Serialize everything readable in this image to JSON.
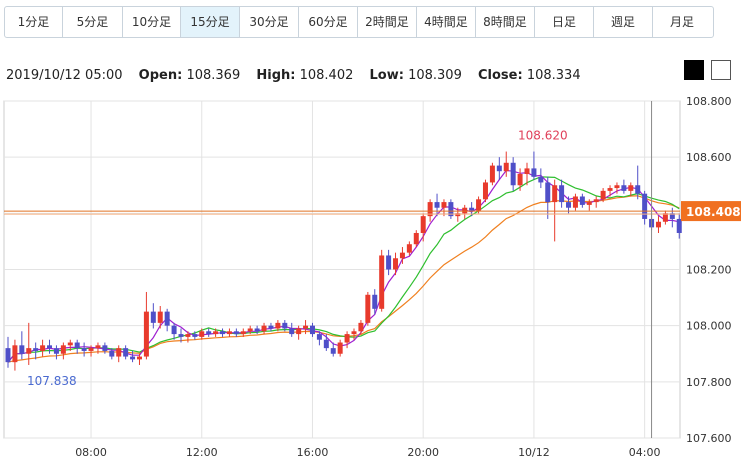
{
  "tabs": [
    {
      "label": "1分足",
      "active": false
    },
    {
      "label": "5分足",
      "active": false
    },
    {
      "label": "10分足",
      "active": false
    },
    {
      "label": "15分足",
      "active": true
    },
    {
      "label": "30分足",
      "active": false
    },
    {
      "label": "60分足",
      "active": false
    },
    {
      "label": "2時間足",
      "active": false
    },
    {
      "label": "4時間足",
      "active": false
    },
    {
      "label": "8時間足",
      "active": false
    },
    {
      "label": "日足",
      "active": false
    },
    {
      "label": "週足",
      "active": false
    },
    {
      "label": "月足",
      "active": false
    }
  ],
  "ohlc": {
    "datetime": "2019/10/12 05:00",
    "open_label": "Open:",
    "open": "108.369",
    "high_label": "High:",
    "high": "108.402",
    "low_label": "Low:",
    "low": "108.309",
    "close_label": "Close:",
    "close": "108.334"
  },
  "theme_buttons": {
    "dark_color": "#000000",
    "light_color": "#ffffff"
  },
  "chart_data": {
    "type": "candlestick",
    "ylim": [
      107.6,
      108.8
    ],
    "yticks": [
      "108.800",
      "108.600",
      "108.400",
      "108.200",
      "108.000",
      "107.800",
      "107.600"
    ],
    "xticks": [
      {
        "label": "08:00",
        "i": 12
      },
      {
        "label": "12:00",
        "i": 28
      },
      {
        "label": "16:00",
        "i": 44
      },
      {
        "label": "20:00",
        "i": 60
      },
      {
        "label": "10/12",
        "i": 76
      },
      {
        "label": "04:00",
        "i": 92
      }
    ],
    "current_price": "108.408",
    "current_price_value": 108.408,
    "high_annotation": {
      "label": "108.620",
      "value": 108.62,
      "i": 77
    },
    "low_annotation": {
      "label": "107.838",
      "value": 107.838,
      "i": 2
    },
    "grid": true,
    "colors": {
      "up": "#e83a2c",
      "down": "#4f4fc8",
      "ma_short": "#a020d0",
      "ma_mid": "#2fbf2f",
      "ma_long": "#f08020",
      "price_line": "#e07020",
      "price_tag_bg": "#f07020",
      "high_label": "#e0405a",
      "low_label": "#4a6ad0"
    },
    "candles": [
      [
        107.92,
        107.96,
        107.85,
        107.87
      ],
      [
        107.87,
        107.95,
        107.84,
        107.93
      ],
      [
        107.93,
        107.98,
        107.88,
        107.9
      ],
      [
        107.9,
        108.01,
        107.86,
        107.92
      ],
      [
        107.92,
        107.94,
        107.88,
        107.91
      ],
      [
        107.91,
        107.95,
        107.89,
        107.93
      ],
      [
        107.93,
        107.95,
        107.9,
        107.92
      ],
      [
        107.92,
        107.93,
        107.88,
        107.9
      ],
      [
        107.9,
        107.94,
        107.88,
        107.93
      ],
      [
        107.93,
        107.95,
        107.91,
        107.94
      ],
      [
        107.94,
        107.95,
        107.9,
        107.92
      ],
      [
        107.92,
        107.94,
        107.89,
        107.91
      ],
      [
        107.91,
        107.93,
        107.89,
        107.92
      ],
      [
        107.92,
        107.94,
        107.9,
        107.93
      ],
      [
        107.93,
        107.94,
        107.9,
        107.91
      ],
      [
        107.91,
        107.92,
        107.88,
        107.89
      ],
      [
        107.89,
        107.93,
        107.87,
        107.92
      ],
      [
        107.92,
        107.93,
        107.88,
        107.89
      ],
      [
        107.89,
        107.91,
        107.87,
        107.88
      ],
      [
        107.88,
        107.9,
        107.86,
        107.89
      ],
      [
        107.89,
        108.12,
        107.88,
        108.05
      ],
      [
        108.05,
        108.08,
        107.99,
        108.01
      ],
      [
        108.01,
        108.07,
        107.99,
        108.05
      ],
      [
        108.05,
        108.06,
        107.98,
        108.0
      ],
      [
        108.0,
        108.01,
        107.95,
        107.97
      ],
      [
        107.97,
        107.99,
        107.94,
        107.96
      ],
      [
        107.96,
        107.98,
        107.94,
        107.97
      ],
      [
        107.97,
        107.98,
        107.95,
        107.96
      ],
      [
        107.96,
        107.99,
        107.95,
        107.98
      ],
      [
        107.98,
        107.99,
        107.96,
        107.97
      ],
      [
        107.97,
        107.99,
        107.96,
        107.98
      ],
      [
        107.98,
        107.99,
        107.96,
        107.97
      ],
      [
        107.97,
        107.99,
        107.96,
        107.98
      ],
      [
        107.98,
        107.99,
        107.96,
        107.97
      ],
      [
        107.97,
        107.99,
        107.96,
        107.98
      ],
      [
        107.98,
        108.0,
        107.97,
        107.99
      ],
      [
        107.99,
        108.0,
        107.97,
        107.98
      ],
      [
        107.98,
        108.01,
        107.97,
        108.0
      ],
      [
        108.0,
        108.01,
        107.98,
        107.99
      ],
      [
        107.99,
        108.02,
        107.98,
        108.01
      ],
      [
        108.01,
        108.02,
        107.98,
        107.99
      ],
      [
        107.99,
        108.01,
        107.96,
        107.97
      ],
      [
        107.97,
        108.0,
        107.95,
        107.99
      ],
      [
        107.99,
        108.02,
        107.97,
        108.0
      ],
      [
        108.0,
        108.01,
        107.96,
        107.97
      ],
      [
        107.97,
        107.98,
        107.93,
        107.95
      ],
      [
        107.95,
        107.97,
        107.91,
        107.92
      ],
      [
        107.92,
        107.94,
        107.89,
        107.9
      ],
      [
        107.9,
        107.95,
        107.89,
        107.94
      ],
      [
        107.94,
        107.98,
        107.92,
        107.97
      ],
      [
        107.97,
        107.99,
        107.95,
        107.98
      ],
      [
        107.98,
        108.02,
        107.97,
        108.01
      ],
      [
        108.01,
        108.12,
        108.0,
        108.11
      ],
      [
        108.11,
        108.13,
        108.04,
        108.06
      ],
      [
        108.06,
        108.27,
        108.05,
        108.25
      ],
      [
        108.25,
        108.27,
        108.18,
        108.2
      ],
      [
        108.2,
        108.26,
        108.18,
        108.24
      ],
      [
        108.24,
        108.28,
        108.22,
        108.26
      ],
      [
        108.26,
        108.3,
        108.25,
        108.29
      ],
      [
        108.29,
        108.34,
        108.28,
        108.33
      ],
      [
        108.33,
        108.4,
        108.3,
        108.39
      ],
      [
        108.39,
        108.45,
        108.37,
        108.44
      ],
      [
        108.44,
        108.47,
        108.39,
        108.42
      ],
      [
        108.42,
        108.45,
        108.39,
        108.44
      ],
      [
        108.44,
        108.45,
        108.38,
        108.39
      ],
      [
        108.39,
        108.42,
        108.37,
        108.4
      ],
      [
        108.4,
        108.43,
        108.38,
        108.42
      ],
      [
        108.42,
        108.44,
        108.39,
        108.41
      ],
      [
        108.41,
        108.46,
        108.4,
        108.45
      ],
      [
        108.45,
        108.52,
        108.44,
        108.51
      ],
      [
        108.51,
        108.58,
        108.5,
        108.57
      ],
      [
        108.57,
        108.6,
        108.52,
        108.55
      ],
      [
        108.55,
        108.62,
        108.53,
        108.58
      ],
      [
        108.58,
        108.6,
        108.48,
        108.5
      ],
      [
        108.5,
        108.56,
        108.48,
        108.54
      ],
      [
        108.54,
        108.58,
        108.5,
        108.56
      ],
      [
        108.56,
        108.62,
        108.52,
        108.53
      ],
      [
        108.53,
        108.56,
        108.49,
        108.51
      ],
      [
        108.51,
        108.53,
        108.38,
        108.44
      ],
      [
        108.44,
        108.52,
        108.3,
        108.5
      ],
      [
        108.5,
        108.52,
        108.42,
        108.44
      ],
      [
        108.44,
        108.46,
        108.4,
        108.42
      ],
      [
        108.42,
        108.47,
        108.41,
        108.46
      ],
      [
        108.46,
        108.47,
        108.42,
        108.43
      ],
      [
        108.43,
        108.45,
        108.41,
        108.44
      ],
      [
        108.44,
        108.46,
        108.42,
        108.45
      ],
      [
        108.45,
        108.49,
        108.44,
        108.48
      ],
      [
        108.48,
        108.5,
        108.46,
        108.49
      ],
      [
        108.49,
        108.51,
        108.47,
        108.5
      ],
      [
        108.5,
        108.52,
        108.47,
        108.48
      ],
      [
        108.48,
        108.51,
        108.46,
        108.5
      ],
      [
        108.5,
        108.57,
        108.45,
        108.47
      ],
      [
        108.47,
        108.48,
        108.36,
        108.38
      ],
      [
        108.38,
        108.4,
        108.34,
        108.35
      ],
      [
        108.35,
        108.39,
        108.33,
        108.37
      ],
      [
        108.37,
        108.41,
        108.36,
        108.4
      ],
      [
        108.4,
        108.42,
        108.35,
        108.38
      ],
      [
        108.38,
        108.4,
        108.31,
        108.33
      ]
    ]
  }
}
